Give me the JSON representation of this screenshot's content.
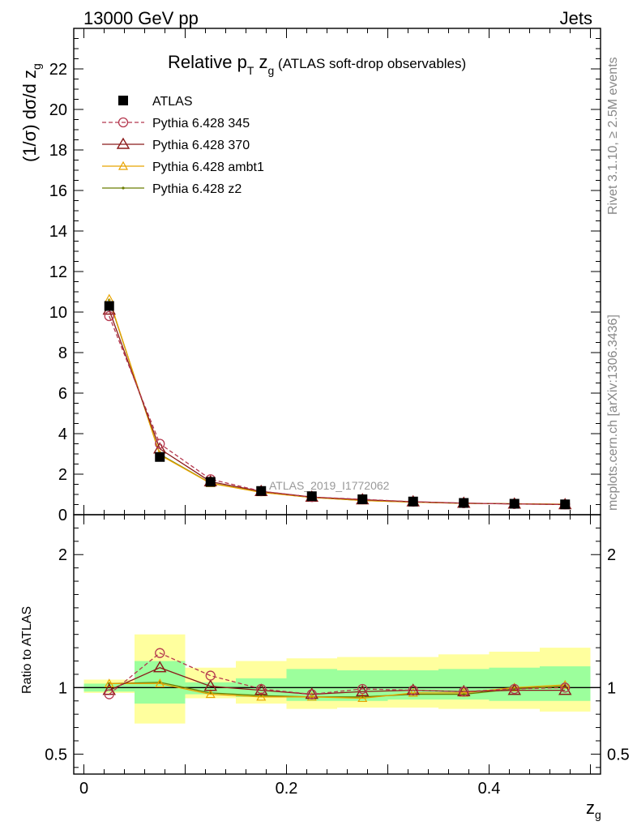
{
  "header": {
    "left": "13000 GeV pp",
    "right": "Jets"
  },
  "side": {
    "rivet": "Rivet 3.1.10, ≥ 2.5M events",
    "mcplots": "mcplots.cern.ch [arXiv:1306.3436]"
  },
  "title": {
    "main_before": "Relative p",
    "main_sub": "T",
    "main_mid": " z",
    "main_sub2": "g",
    "main_after": " (ATLAS soft-drop observables)"
  },
  "watermark": "ATLAS_2019_I1772062",
  "colors": {
    "data": "#000000",
    "p345": "#b5384f",
    "p370": "#8b1a1a",
    "ambt1": "#e8a300",
    "z2": "#6b7d00",
    "band_outer": "#ffff9e",
    "band_inner": "#9cff9c"
  },
  "chart_data": [
    {
      "type": "line",
      "ylabel": "(1/σ) dσ/d z",
      "ylabel_sub": "g",
      "xlim": [
        -0.01,
        0.51
      ],
      "ylim": [
        0,
        24
      ],
      "y_ticks": [
        0,
        2,
        4,
        6,
        8,
        10,
        12,
        14,
        16,
        18,
        20,
        22
      ],
      "y_tick_labels": [
        "0",
        "2",
        "4",
        "6",
        "8",
        "10",
        "12",
        "14",
        "16",
        "18",
        "20",
        "22"
      ],
      "x": [
        0.025,
        0.075,
        0.125,
        0.175,
        0.225,
        0.275,
        0.325,
        0.375,
        0.425,
        0.475
      ],
      "bin_edges": [
        0.0,
        0.05,
        0.1,
        0.15,
        0.2,
        0.25,
        0.3,
        0.35,
        0.4,
        0.45,
        0.5
      ],
      "series": [
        {
          "name": "ATLAS",
          "key": "data",
          "marker": "square",
          "values": [
            10.3,
            2.85,
            1.62,
            1.17,
            0.91,
            0.76,
            0.65,
            0.58,
            0.54,
            0.51
          ]
        },
        {
          "name": "Pythia 6.428 345",
          "key": "p345",
          "marker": "circle",
          "dash": true,
          "values": [
            9.8,
            3.5,
            1.75,
            1.16,
            0.87,
            0.76,
            0.64,
            0.57,
            0.53,
            0.51
          ]
        },
        {
          "name": "Pythia 6.428 370",
          "key": "p370",
          "marker": "triangle",
          "values": [
            10.1,
            3.25,
            1.63,
            1.15,
            0.87,
            0.74,
            0.64,
            0.57,
            0.53,
            0.5
          ]
        },
        {
          "name": "Pythia 6.428 ambt1",
          "key": "ambt1",
          "marker": "triangle-small",
          "values": [
            10.65,
            2.95,
            1.55,
            1.1,
            0.85,
            0.7,
            0.62,
            0.56,
            0.54,
            0.52
          ]
        },
        {
          "name": "Pythia 6.428 z2",
          "key": "z2",
          "marker": "dot",
          "values": [
            10.6,
            2.98,
            1.56,
            1.11,
            0.85,
            0.7,
            0.62,
            0.56,
            0.54,
            0.51
          ]
        }
      ]
    },
    {
      "type": "line",
      "ylabel": "Ratio to ATLAS",
      "xlabel": "z",
      "xlabel_sub": "g",
      "xlim": [
        -0.01,
        0.51
      ],
      "ylim": [
        0.35,
        2.3
      ],
      "y_ticks": [
        0.5,
        1,
        2
      ],
      "y_tick_labels": [
        "0.5",
        "1",
        "2"
      ],
      "x_ticks": [
        0,
        0.2,
        0.4
      ],
      "x_tick_labels": [
        "0",
        "0.2",
        "0.4"
      ],
      "x": [
        0.025,
        0.075,
        0.125,
        0.175,
        0.225,
        0.275,
        0.325,
        0.375,
        0.425,
        0.475
      ],
      "bin_edges": [
        0.0,
        0.05,
        0.1,
        0.15,
        0.2,
        0.25,
        0.3,
        0.35,
        0.4,
        0.45,
        0.5
      ],
      "band_outer": {
        "lo": [
          0.96,
          0.73,
          0.92,
          0.88,
          0.84,
          0.85,
          0.85,
          0.84,
          0.84,
          0.82
        ],
        "hi": [
          1.06,
          1.4,
          1.15,
          1.2,
          1.22,
          1.23,
          1.23,
          1.25,
          1.27,
          1.3
        ]
      },
      "band_inner": {
        "lo": [
          0.97,
          0.88,
          0.95,
          0.93,
          0.9,
          0.9,
          0.91,
          0.91,
          0.9,
          0.9
        ],
        "hi": [
          1.03,
          1.2,
          1.04,
          1.07,
          1.14,
          1.13,
          1.13,
          1.14,
          1.15,
          1.16
        ]
      },
      "series": [
        {
          "name": "Pythia 6.428 345",
          "key": "p345",
          "marker": "circle",
          "dash": true,
          "values": [
            0.95,
            1.26,
            1.09,
            0.99,
            0.95,
            0.99,
            0.98,
            0.97,
            0.99,
            1.0
          ]
        },
        {
          "name": "Pythia 6.428 370",
          "key": "p370",
          "marker": "triangle",
          "values": [
            0.98,
            1.15,
            1.01,
            0.98,
            0.95,
            0.97,
            0.98,
            0.97,
            0.98,
            0.98
          ]
        },
        {
          "name": "Pythia 6.428 ambt1",
          "key": "ambt1",
          "marker": "triangle-small",
          "values": [
            1.03,
            1.03,
            0.95,
            0.93,
            0.93,
            0.92,
            0.96,
            0.96,
            1.0,
            1.02
          ]
        },
        {
          "name": "Pythia 6.428 z2",
          "key": "z2",
          "marker": "dot",
          "values": [
            1.03,
            1.04,
            0.96,
            0.94,
            0.93,
            0.93,
            0.95,
            0.95,
            0.99,
            1.01
          ]
        }
      ]
    }
  ]
}
